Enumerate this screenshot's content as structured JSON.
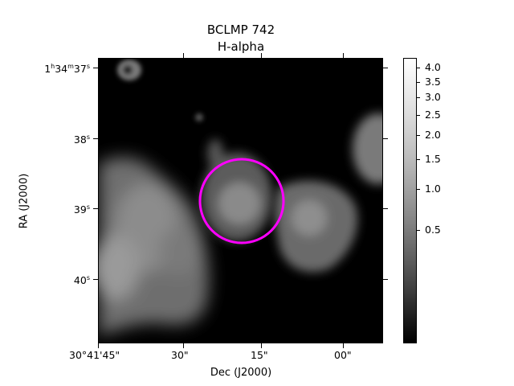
{
  "figure": {
    "title": "BCLMP 742",
    "subtitle": "H-alpha"
  },
  "axes": {
    "xlabel": "Dec (J2000)",
    "ylabel": "RA (J2000)",
    "xticks": [
      "30°41'45\"",
      "30\"",
      "15\"",
      "00\""
    ],
    "yticks": [
      {
        "h": "1",
        "m": "34",
        "s": "37"
      },
      {
        "s": "38"
      },
      {
        "s": "39"
      },
      {
        "s": "40"
      }
    ]
  },
  "colorbar": {
    "labels": [
      "4.0",
      "3.5",
      "3.0",
      "2.5",
      "2.0",
      "1.5",
      "1.0",
      "0.5"
    ],
    "scale": "nonlinear (sqrt-like stretch)",
    "colormap": "grayscale"
  },
  "annotation": {
    "type": "circle",
    "color": "#ff00ff"
  },
  "image": {
    "description_colors": {
      "background": "#000000",
      "marker": "#ff00ff"
    }
  }
}
